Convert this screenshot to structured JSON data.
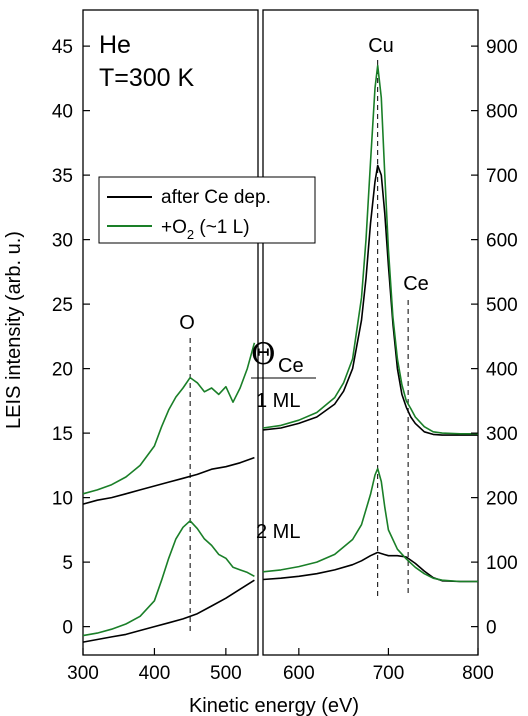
{
  "chart_data": {
    "type": "line",
    "title": "",
    "xlabel": "Kinetic energy (eV)",
    "ylabel": "LEIS intensity (arb. u.)",
    "x_ticks": [
      300,
      400,
      500,
      600,
      700,
      800
    ],
    "left_y_ticks": [
      0,
      5,
      10,
      15,
      20,
      25,
      30,
      35,
      40,
      45
    ],
    "right_y_ticks": [
      0,
      100,
      200,
      300,
      400,
      500,
      600,
      700,
      800,
      900
    ],
    "left_panel": {
      "xlim": [
        300,
        545
      ],
      "ylim": [
        -2.2,
        47.8
      ]
    },
    "right_panel": {
      "xlim": [
        560,
        800
      ],
      "ylim": [
        -44,
        956
      ]
    },
    "annotations": {
      "gas": "He",
      "temperature": "T=300 K",
      "peak_o": "O",
      "peak_cu": "Cu",
      "peak_ce": "Ce",
      "theta_symbol": "Θ",
      "theta_sub": "Ce",
      "coverage_1": "1 ML",
      "coverage_2": "2 ML"
    },
    "reference_lines": {
      "O": 450,
      "Cu": 688,
      "Ce": 722
    },
    "legend": [
      {
        "label": "after Ce dep.",
        "sub": "",
        "tail": "",
        "color": "#000000"
      },
      {
        "label": "+O",
        "sub": "2",
        "tail": " (~1 L)",
        "color": "#1a7f28"
      }
    ],
    "series": [
      {
        "name": "after Ce dep.",
        "coverage": "1 ML",
        "region": "low-energy",
        "color": "#000000",
        "x": [
          300,
          320,
          340,
          360,
          380,
          400,
          420,
          440,
          460,
          480,
          500,
          520,
          540
        ],
        "y": [
          9.5,
          9.8,
          10.0,
          10.3,
          10.6,
          10.9,
          11.2,
          11.5,
          11.8,
          12.2,
          12.4,
          12.7,
          13.1
        ]
      },
      {
        "name": "+O2 (~1 L)",
        "coverage": "1 ML",
        "region": "low-energy",
        "color": "#1a7f28",
        "x": [
          300,
          320,
          340,
          360,
          380,
          400,
          410,
          420,
          430,
          440,
          450,
          460,
          470,
          480,
          490,
          500,
          510,
          520,
          530,
          540
        ],
        "y": [
          10.3,
          10.6,
          11.0,
          11.6,
          12.5,
          14.0,
          15.5,
          16.8,
          17.8,
          18.5,
          19.3,
          18.9,
          18.2,
          18.5,
          18.0,
          18.6,
          17.4,
          18.5,
          20.0,
          22.0
        ]
      },
      {
        "name": "after Ce dep.",
        "coverage": "2 ML",
        "region": "low-energy",
        "color": "#000000",
        "x": [
          300,
          320,
          340,
          360,
          380,
          400,
          420,
          440,
          460,
          480,
          500,
          520,
          540
        ],
        "y": [
          -1.2,
          -1.0,
          -0.8,
          -0.6,
          -0.3,
          0.0,
          0.3,
          0.6,
          1.0,
          1.6,
          2.2,
          2.9,
          3.6
        ]
      },
      {
        "name": "+O2 (~1 L)",
        "coverage": "2 ML",
        "region": "low-energy",
        "color": "#1a7f28",
        "x": [
          300,
          320,
          340,
          360,
          380,
          400,
          410,
          420,
          430,
          440,
          450,
          460,
          470,
          480,
          490,
          500,
          510,
          520,
          530,
          540
        ],
        "y": [
          -0.7,
          -0.5,
          -0.2,
          0.2,
          0.8,
          2.0,
          3.6,
          5.3,
          6.8,
          7.7,
          8.2,
          7.6,
          6.8,
          6.3,
          5.6,
          5.3,
          4.6,
          4.4,
          4.2,
          3.9
        ]
      },
      {
        "name": "after Ce dep.",
        "coverage": "1 ML",
        "region": "high-energy",
        "color": "#000000",
        "x": [
          560,
          580,
          600,
          620,
          640,
          650,
          660,
          670,
          675,
          680,
          685,
          688,
          692,
          696,
          700,
          705,
          710,
          715,
          720,
          725,
          730,
          740,
          750,
          760,
          780,
          800
        ],
        "y": [
          305,
          308,
          315,
          325,
          345,
          365,
          400,
          475,
          540,
          625,
          690,
          715,
          700,
          640,
          560,
          470,
          400,
          360,
          340,
          325,
          315,
          302,
          298,
          297,
          297,
          297
        ]
      },
      {
        "name": "+O2 (~1 L)",
        "coverage": "1 ML",
        "region": "high-energy",
        "color": "#1a7f28",
        "x": [
          560,
          580,
          600,
          620,
          640,
          650,
          660,
          670,
          675,
          680,
          685,
          688,
          692,
          696,
          700,
          705,
          710,
          715,
          720,
          725,
          730,
          740,
          750,
          760,
          780,
          800
        ],
        "y": [
          308,
          312,
          320,
          332,
          355,
          378,
          415,
          510,
          600,
          720,
          835,
          870,
          820,
          700,
          585,
          480,
          415,
          375,
          350,
          338,
          325,
          310,
          302,
          300,
          299,
          299
        ]
      },
      {
        "name": "after Ce dep.",
        "coverage": "2 ML",
        "region": "high-energy",
        "color": "#000000",
        "x": [
          560,
          580,
          600,
          620,
          640,
          660,
          670,
          680,
          688,
          695,
          700,
          710,
          720,
          730,
          740,
          750,
          760,
          780,
          800
        ],
        "y": [
          73,
          75,
          78,
          82,
          88,
          96,
          102,
          110,
          115,
          112,
          110,
          110,
          108,
          98,
          86,
          76,
          71,
          70,
          70
        ]
      },
      {
        "name": "+O2 (~1 L)",
        "coverage": "2 ML",
        "region": "high-energy",
        "color": "#1a7f28",
        "x": [
          560,
          580,
          600,
          620,
          640,
          660,
          670,
          680,
          685,
          688,
          692,
          696,
          700,
          710,
          720,
          730,
          740,
          750,
          760,
          780,
          800
        ],
        "y": [
          85,
          88,
          93,
          100,
          112,
          135,
          158,
          205,
          235,
          245,
          225,
          185,
          150,
          120,
          105,
          92,
          82,
          75,
          72,
          70,
          70
        ]
      }
    ]
  }
}
